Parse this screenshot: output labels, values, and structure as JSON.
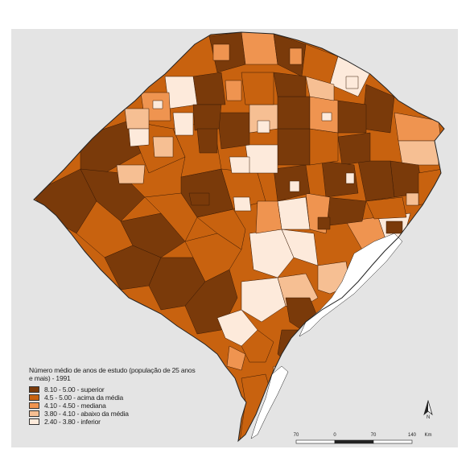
{
  "legend": {
    "title": "Número médio de anos de estudo (população de 25 anos e mais) - 1991",
    "classes": [
      {
        "label": "8.10 - 5.00 - superior",
        "color": "#7a3a0a"
      },
      {
        "label": "4.5 - 5.00 - acima da média",
        "color": "#c8620f"
      },
      {
        "label": "4.10 - 4.50 - mediana",
        "color": "#ef9450"
      },
      {
        "label": "3.80 - 4.10 - abaixo da média",
        "color": "#f6bf93"
      },
      {
        "label": "2.40 - 3.80 - inferior",
        "color": "#fdeadb"
      }
    ]
  },
  "north_arrow": {
    "label": "N"
  },
  "scale": {
    "ticks": [
      "70",
      "0",
      "70",
      "140"
    ],
    "unit": "Km"
  },
  "colors": {
    "background": "#e4e4e4",
    "water": "#ffffff",
    "border": "#222222"
  }
}
